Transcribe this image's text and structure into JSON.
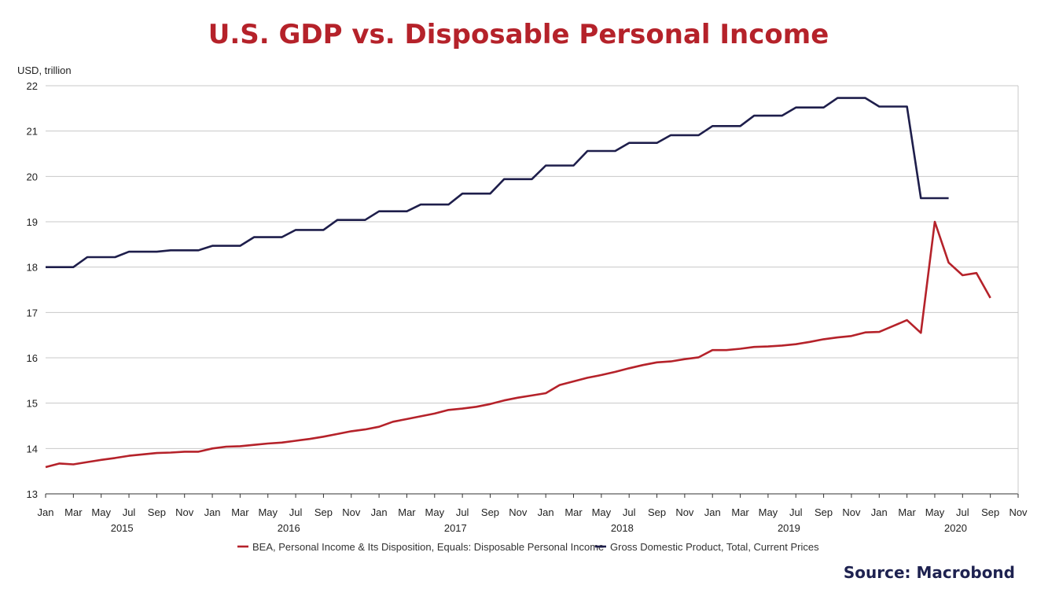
{
  "chart_data": {
    "type": "line",
    "title": "U.S. GDP vs. Disposable Personal Income",
    "ylabel": "USD, trillion",
    "ylim": [
      13,
      22
    ],
    "yticks": [
      13,
      14,
      15,
      16,
      17,
      18,
      19,
      20,
      21,
      22
    ],
    "xlim": [
      "2015-01",
      "2020-11"
    ],
    "month_ticks": [
      "Jan",
      "Mar",
      "May",
      "Jul",
      "Sep",
      "Nov",
      "Jan",
      "Mar",
      "May",
      "Jul",
      "Sep",
      "Nov",
      "Jan",
      "Mar",
      "May",
      "Jul",
      "Sep",
      "Nov",
      "Jan",
      "Mar",
      "May",
      "Jul",
      "Sep",
      "Nov",
      "Jan",
      "Mar",
      "May",
      "Jul",
      "Sep",
      "Nov",
      "Jan",
      "Mar",
      "May",
      "Jul",
      "Sep",
      "Nov"
    ],
    "year_labels": [
      "2015",
      "2016",
      "2017",
      "2018",
      "2019",
      "2020"
    ],
    "grid": true,
    "legend_position": "bottom",
    "series": [
      {
        "name": "BEA, Personal Income & Its Disposition, Equals: Disposable Personal Income",
        "color": "#b5222a",
        "points": [
          [
            "2015-01",
            13.59
          ],
          [
            "2015-02",
            13.67
          ],
          [
            "2015-03",
            13.65
          ],
          [
            "2015-04",
            13.7
          ],
          [
            "2015-05",
            13.75
          ],
          [
            "2015-06",
            13.79
          ],
          [
            "2015-07",
            13.84
          ],
          [
            "2015-08",
            13.87
          ],
          [
            "2015-09",
            13.9
          ],
          [
            "2015-10",
            13.91
          ],
          [
            "2015-11",
            13.93
          ],
          [
            "2015-12",
            13.93
          ],
          [
            "2016-01",
            14.0
          ],
          [
            "2016-02",
            14.04
          ],
          [
            "2016-03",
            14.05
          ],
          [
            "2016-04",
            14.08
          ],
          [
            "2016-05",
            14.11
          ],
          [
            "2016-06",
            14.13
          ],
          [
            "2016-07",
            14.17
          ],
          [
            "2016-08",
            14.21
          ],
          [
            "2016-09",
            14.26
          ],
          [
            "2016-10",
            14.32
          ],
          [
            "2016-11",
            14.38
          ],
          [
            "2016-12",
            14.42
          ],
          [
            "2017-01",
            14.48
          ],
          [
            "2017-02",
            14.59
          ],
          [
            "2017-03",
            14.65
          ],
          [
            "2017-04",
            14.71
          ],
          [
            "2017-05",
            14.77
          ],
          [
            "2017-06",
            14.85
          ],
          [
            "2017-07",
            14.88
          ],
          [
            "2017-08",
            14.92
          ],
          [
            "2017-09",
            14.98
          ],
          [
            "2017-10",
            15.06
          ],
          [
            "2017-11",
            15.12
          ],
          [
            "2017-12",
            15.17
          ],
          [
            "2018-01",
            15.22
          ],
          [
            "2018-02",
            15.4
          ],
          [
            "2018-03",
            15.48
          ],
          [
            "2018-04",
            15.56
          ],
          [
            "2018-05",
            15.62
          ],
          [
            "2018-06",
            15.69
          ],
          [
            "2018-07",
            15.77
          ],
          [
            "2018-08",
            15.84
          ],
          [
            "2018-09",
            15.9
          ],
          [
            "2018-10",
            15.92
          ],
          [
            "2018-11",
            15.97
          ],
          [
            "2018-12",
            16.01
          ],
          [
            "2019-01",
            16.17
          ],
          [
            "2019-02",
            16.17
          ],
          [
            "2019-03",
            16.2
          ],
          [
            "2019-04",
            16.24
          ],
          [
            "2019-05",
            16.25
          ],
          [
            "2019-06",
            16.27
          ],
          [
            "2019-07",
            16.3
          ],
          [
            "2019-08",
            16.35
          ],
          [
            "2019-09",
            16.41
          ],
          [
            "2019-10",
            16.45
          ],
          [
            "2019-11",
            16.48
          ],
          [
            "2019-12",
            16.56
          ],
          [
            "2020-01",
            16.57
          ],
          [
            "2020-02",
            16.7
          ],
          [
            "2020-03",
            16.83
          ],
          [
            "2020-04",
            16.55
          ],
          [
            "2020-05",
            19.0
          ],
          [
            "2020-06",
            18.1
          ],
          [
            "2020-07",
            17.82
          ],
          [
            "2020-08",
            17.87
          ],
          [
            "2020-09",
            17.32
          ]
        ]
      },
      {
        "name": "Gross Domestic Product, Total, Current Prices",
        "color": "#1e1e4b",
        "points": [
          [
            "2015-01",
            18.0
          ],
          [
            "2015-03",
            18.0
          ],
          [
            "2015-04",
            18.22
          ],
          [
            "2015-06",
            18.22
          ],
          [
            "2015-07",
            18.34
          ],
          [
            "2015-09",
            18.34
          ],
          [
            "2015-10",
            18.37
          ],
          [
            "2015-12",
            18.37
          ],
          [
            "2016-01",
            18.47
          ],
          [
            "2016-03",
            18.47
          ],
          [
            "2016-04",
            18.66
          ],
          [
            "2016-06",
            18.66
          ],
          [
            "2016-07",
            18.82
          ],
          [
            "2016-09",
            18.82
          ],
          [
            "2016-10",
            19.04
          ],
          [
            "2016-12",
            19.04
          ],
          [
            "2017-01",
            19.23
          ],
          [
            "2017-03",
            19.23
          ],
          [
            "2017-04",
            19.38
          ],
          [
            "2017-06",
            19.38
          ],
          [
            "2017-07",
            19.62
          ],
          [
            "2017-09",
            19.62
          ],
          [
            "2017-10",
            19.94
          ],
          [
            "2017-12",
            19.94
          ],
          [
            "2018-01",
            20.24
          ],
          [
            "2018-03",
            20.24
          ],
          [
            "2018-04",
            20.56
          ],
          [
            "2018-06",
            20.56
          ],
          [
            "2018-07",
            20.74
          ],
          [
            "2018-09",
            20.74
          ],
          [
            "2018-10",
            20.91
          ],
          [
            "2018-12",
            20.91
          ],
          [
            "2019-01",
            21.11
          ],
          [
            "2019-03",
            21.11
          ],
          [
            "2019-04",
            21.34
          ],
          [
            "2019-06",
            21.34
          ],
          [
            "2019-07",
            21.52
          ],
          [
            "2019-09",
            21.52
          ],
          [
            "2019-10",
            21.73
          ],
          [
            "2019-12",
            21.73
          ],
          [
            "2020-01",
            21.54
          ],
          [
            "2020-03",
            21.54
          ],
          [
            "2020-04",
            19.52
          ],
          [
            "2020-06",
            19.52
          ]
        ]
      }
    ]
  },
  "source": "Source: Macrobond"
}
